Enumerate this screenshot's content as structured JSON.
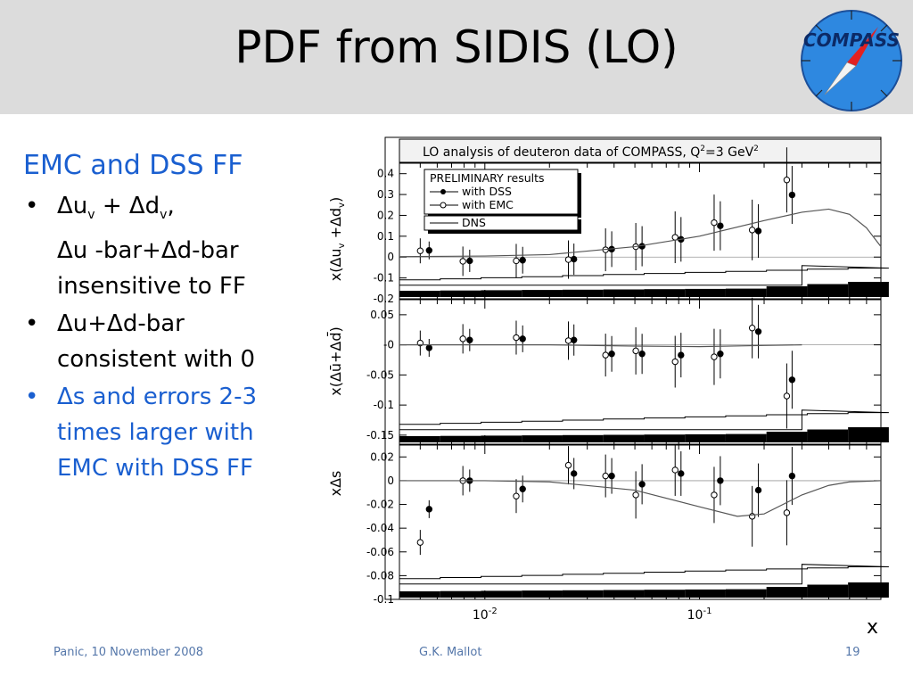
{
  "slide": {
    "title": "PDF from SIDIS (LO)",
    "logo_text": "COMPASS",
    "footer_left": "Panic, 10 November 2008",
    "footer_center": "G.K. Mallot",
    "footer_right": "19"
  },
  "text_block": {
    "heading": "EMC and DSS FF",
    "bullet1_line1_a": "Δu",
    "bullet1_line1_sub_a": "v",
    "bullet1_line1_b": " + Δd",
    "bullet1_line1_sub_b": "v",
    "bullet1_line1_c": ",",
    "bullet1_line2": "Δu -bar+Δd-bar",
    "bullet1_line3": "insensitive to  FF",
    "bullet2_line1": "Δu+Δd-bar",
    "bullet2_line2": "consistent with 0",
    "bullet3_line1": "Δs and errors 2-3",
    "bullet3_line2": "times larger with",
    "bullet3_line3": "EMC with DSS FF"
  },
  "colors": {
    "heading": "#1a5fd0",
    "header_bg": "#dcdcdc"
  },
  "figure": {
    "title_a": "LO analysis of deuteron data of COMPASS, Q",
    "title_sup": "2",
    "title_b": "=3 GeV",
    "title_sup2": "2",
    "legend": {
      "title": "PRELIMINARY results",
      "dss": "with DSS",
      "emc": "with EMC",
      "dns": "DNS"
    },
    "x_axis_label": "x",
    "x_tick_labels": [
      {
        "base": "10",
        "exp": "-2"
      },
      {
        "base": "10",
        "exp": "-1"
      }
    ]
  },
  "chart_data": [
    {
      "type": "scatter",
      "panel": "top",
      "ylabel": "x(Δu_v+Δd_v)",
      "xscale": "log",
      "xlim": [
        0.004,
        0.7
      ],
      "ylim": [
        -0.2,
        0.45
      ],
      "y_ticks": [
        -0.2,
        -0.1,
        0,
        0.1,
        0.2,
        0.3,
        0.4
      ],
      "y_tick_labels": [
        "-0.2",
        "-0.1",
        "0",
        "0.1",
        "0.2",
        "0.3",
        "0.4"
      ],
      "series": [
        {
          "name": "with DSS",
          "x": [
            0.0055,
            0.0085,
            0.015,
            0.026,
            0.039,
            0.054,
            0.082,
            0.125,
            0.188,
            0.27
          ],
          "y": [
            0.032,
            -0.018,
            -0.015,
            -0.01,
            0.038,
            0.052,
            0.085,
            0.15,
            0.125,
            0.298
          ]
        },
        {
          "name": "with EMC",
          "x": [
            0.005,
            0.0079,
            0.014,
            0.0245,
            0.0365,
            0.0505,
            0.077,
            0.117,
            0.176,
            0.255
          ],
          "y": [
            0.03,
            -0.02,
            -0.018,
            -0.012,
            0.035,
            0.05,
            0.095,
            0.165,
            0.13,
            0.37
          ]
        },
        {
          "name": "DNS",
          "x": [
            0.004,
            0.01,
            0.02,
            0.05,
            0.1,
            0.2,
            0.3,
            0.4,
            0.5,
            0.6,
            0.7
          ],
          "y": [
            0.002,
            0.005,
            0.012,
            0.05,
            0.1,
            0.175,
            0.215,
            0.23,
            0.205,
            0.14,
            0.05
          ]
        }
      ]
    },
    {
      "type": "scatter",
      "panel": "middle",
      "ylabel": "x(Δū+Δd̄)",
      "xscale": "log",
      "xlim": [
        0.004,
        0.7
      ],
      "ylim": [
        -0.165,
        0.075
      ],
      "y_ticks": [
        -0.15,
        -0.1,
        -0.05,
        0,
        0.05
      ],
      "y_tick_labels": [
        "-0.15",
        "-0.1",
        "-0.05",
        "-0",
        "0.05"
      ],
      "series": [
        {
          "name": "with DSS",
          "x": [
            0.0055,
            0.0085,
            0.015,
            0.026,
            0.039,
            0.054,
            0.082,
            0.125,
            0.188,
            0.27
          ],
          "y": [
            -0.005,
            0.008,
            0.01,
            0.008,
            -0.015,
            -0.015,
            -0.017,
            -0.015,
            0.022,
            -0.058
          ]
        },
        {
          "name": "with EMC",
          "x": [
            0.005,
            0.0079,
            0.014,
            0.0245,
            0.0365,
            0.0505,
            0.077,
            0.117,
            0.176,
            0.255
          ],
          "y": [
            0.003,
            0.01,
            0.012,
            0.007,
            -0.017,
            -0.01,
            -0.028,
            -0.02,
            0.028,
            -0.085
          ]
        },
        {
          "name": "DNS",
          "x": [
            0.004,
            0.01,
            0.02,
            0.05,
            0.1,
            0.2,
            0.3
          ],
          "y": [
            0.0,
            0.0,
            0.0,
            -0.002,
            -0.003,
            -0.001,
            0.0
          ]
        }
      ]
    },
    {
      "type": "scatter",
      "panel": "bottom",
      "ylabel": "xΔs",
      "xscale": "log",
      "xlim": [
        0.004,
        0.7
      ],
      "ylim": [
        -0.1,
        0.03
      ],
      "y_ticks": [
        -0.1,
        -0.08,
        -0.06,
        -0.04,
        -0.02,
        0,
        0.02
      ],
      "y_tick_labels": [
        "-0.1",
        "-0.08",
        "-0.06",
        "-0.04",
        "-0.02",
        "0",
        "0.02"
      ],
      "series": [
        {
          "name": "with DSS",
          "x": [
            0.0055,
            0.0085,
            0.015,
            0.026,
            0.039,
            0.054,
            0.082,
            0.125,
            0.188,
            0.27
          ],
          "y": [
            -0.024,
            0.0,
            -0.007,
            0.006,
            0.004,
            -0.003,
            0.006,
            0.0,
            -0.008,
            0.004
          ]
        },
        {
          "name": "with EMC",
          "x": [
            0.005,
            0.0079,
            0.014,
            0.0245,
            0.0365,
            0.0505,
            0.077,
            0.117,
            0.176,
            0.255
          ],
          "y": [
            -0.052,
            0.0,
            -0.013,
            0.013,
            0.004,
            -0.012,
            0.009,
            -0.012,
            -0.03,
            -0.027
          ]
        },
        {
          "name": "DNS",
          "x": [
            0.004,
            0.01,
            0.02,
            0.05,
            0.1,
            0.15,
            0.2,
            0.3,
            0.4,
            0.5,
            0.7
          ],
          "y": [
            0.0,
            0.0,
            -0.001,
            -0.008,
            -0.022,
            -0.03,
            -0.028,
            -0.012,
            -0.004,
            -0.001,
            0.0
          ]
        }
      ]
    }
  ]
}
